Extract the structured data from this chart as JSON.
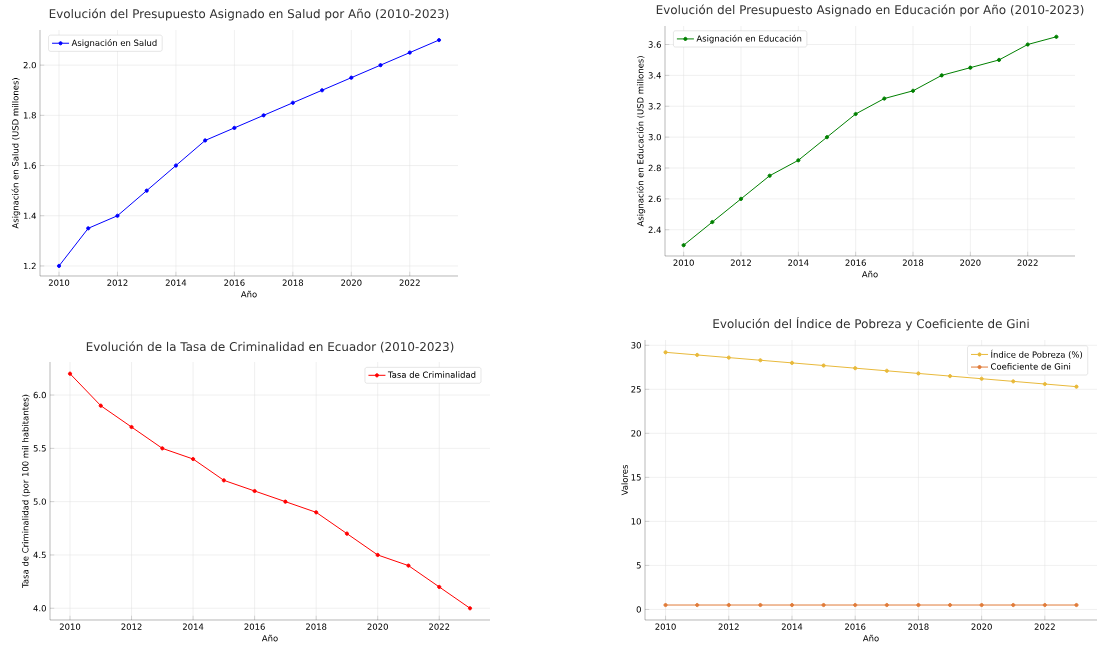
{
  "chart_data": [
    {
      "type": "line",
      "title": "Evolución del Presupuesto Asignado en Salud por Año (2010-2023)",
      "xlabel": "Año",
      "ylabel": "Asignación en Salud (USD millones)",
      "x": [
        2010,
        2011,
        2012,
        2013,
        2014,
        2015,
        2016,
        2017,
        2018,
        2019,
        2020,
        2021,
        2022,
        2023
      ],
      "series": [
        {
          "name": "Asignación en Salud",
          "color": "#0000ff",
          "values": [
            1.2,
            1.35,
            1.4,
            1.5,
            1.6,
            1.7,
            1.75,
            1.8,
            1.85,
            1.9,
            1.95,
            2.0,
            2.05,
            2.1
          ]
        }
      ],
      "xlim": [
        2009.35,
        2023.65
      ],
      "ylim": [
        1.16,
        2.14
      ],
      "xticks": [
        2010,
        2012,
        2014,
        2016,
        2018,
        2020,
        2022
      ],
      "yticks": [
        1.2,
        1.4,
        1.6,
        1.8,
        {
          "value": 2,
          "label": "2.0"
        }
      ],
      "grid": true,
      "legend": "top left",
      "marker": "circle",
      "line_style": "solid"
    },
    {
      "type": "line",
      "title": "Evolución del Presupuesto Asignado en Educación por Año (2010-2023)",
      "xlabel": "Año",
      "ylabel": "Asignación en Educación (USD millones)",
      "x": [
        2010,
        2011,
        2012,
        2013,
        2014,
        2015,
        2016,
        2017,
        2018,
        2019,
        2020,
        2021,
        2022,
        2023
      ],
      "series": [
        {
          "name": "Asignación en Educación",
          "color": "#008000",
          "values": [
            2.3,
            2.45,
            2.6,
            2.75,
            2.85,
            3.0,
            3.15,
            3.25,
            3.3,
            3.4,
            3.45,
            3.5,
            3.6,
            3.65
          ]
        }
      ],
      "xlim": [
        2009.35,
        2023.65
      ],
      "ylim": [
        2.23,
        3.72
      ],
      "xticks": [
        2010,
        2012,
        2014,
        2016,
        2018,
        2020,
        2022
      ],
      "yticks": [
        2.4,
        2.6,
        2.8,
        {
          "value": 3,
          "label": "3.0"
        },
        3.2,
        3.4,
        3.6
      ],
      "grid": true,
      "legend": "top left",
      "marker": "circle",
      "line_style": "solid"
    },
    {
      "type": "line",
      "title": "Evolución de la Tasa de Criminalidad en Ecuador (2010-2023)",
      "xlabel": "Año",
      "ylabel": "Tasa de Criminalidad (por 100 mil habitantes)",
      "x": [
        2010,
        2011,
        2012,
        2013,
        2014,
        2015,
        2016,
        2017,
        2018,
        2019,
        2020,
        2021,
        2022,
        2023
      ],
      "series": [
        {
          "name": "Tasa de Criminalidad",
          "color": "#ff0000",
          "values": [
            6.2,
            5.9,
            5.7,
            5.5,
            5.4,
            5.2,
            5.1,
            5.0,
            4.9,
            4.7,
            4.5,
            4.4,
            4.2,
            4.0
          ]
        }
      ],
      "xlim": [
        2009.35,
        2023.65
      ],
      "ylim": [
        3.89,
        6.31
      ],
      "xticks": [
        2010,
        2012,
        2014,
        2016,
        2018,
        2020,
        2022
      ],
      "yticks": [
        {
          "value": 4,
          "label": "4.0"
        },
        4.5,
        {
          "value": 5,
          "label": "5.0"
        },
        5.5,
        {
          "value": 6,
          "label": "6.0"
        }
      ],
      "grid": true,
      "legend": "top right",
      "marker": "circle",
      "line_style": "solid"
    },
    {
      "type": "line",
      "title": "Evolución del Índice de Pobreza y Coeficiente de Gini",
      "xlabel": "Año",
      "ylabel": "Valores",
      "x": [
        2010,
        2011,
        2012,
        2013,
        2014,
        2015,
        2016,
        2017,
        2018,
        2019,
        2020,
        2021,
        2022,
        2023
      ],
      "series": [
        {
          "name": "Índice de Pobreza (%)",
          "color": "#e8b93a",
          "values": [
            29.2,
            28.9,
            28.6,
            28.3,
            28.0,
            27.7,
            27.4,
            27.1,
            26.8,
            26.5,
            26.2,
            25.9,
            25.6,
            25.3
          ]
        },
        {
          "name": "Coeficiente de Gini",
          "color": "#e07b39",
          "values": [
            0.5,
            0.5,
            0.5,
            0.5,
            0.5,
            0.5,
            0.5,
            0.5,
            0.5,
            0.5,
            0.5,
            0.5,
            0.5,
            0.5
          ]
        }
      ],
      "xlim": [
        2009.35,
        2023.65
      ],
      "ylim": [
        -1.2,
        30.6
      ],
      "xticks": [
        2010,
        2012,
        2014,
        2016,
        2018,
        2020,
        2022
      ],
      "yticks": [
        0,
        5,
        10,
        15,
        20,
        25,
        30
      ],
      "grid": true,
      "legend": "top right",
      "marker": "circle",
      "line_style": "solid"
    }
  ]
}
